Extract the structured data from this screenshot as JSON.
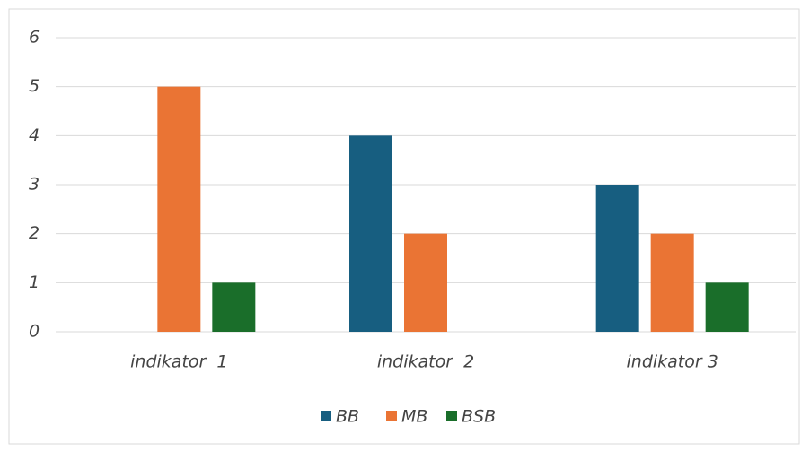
{
  "chart_data": {
    "type": "bar",
    "categories": [
      "indikator  1",
      "indikator  2",
      "indikator 3"
    ],
    "series": [
      {
        "name": "BB",
        "color": "#175e80",
        "values": [
          0,
          4,
          3
        ]
      },
      {
        "name": "MB",
        "color": "#ea7434",
        "values": [
          5,
          2,
          2
        ]
      },
      {
        "name": "BSB",
        "color": "#1a6e2a",
        "values": [
          1,
          0,
          1
        ]
      }
    ],
    "ylim": [
      0,
      6
    ],
    "yticks": [
      0,
      1,
      2,
      3,
      4,
      5,
      6
    ],
    "grid": true,
    "legend": "bottom"
  }
}
